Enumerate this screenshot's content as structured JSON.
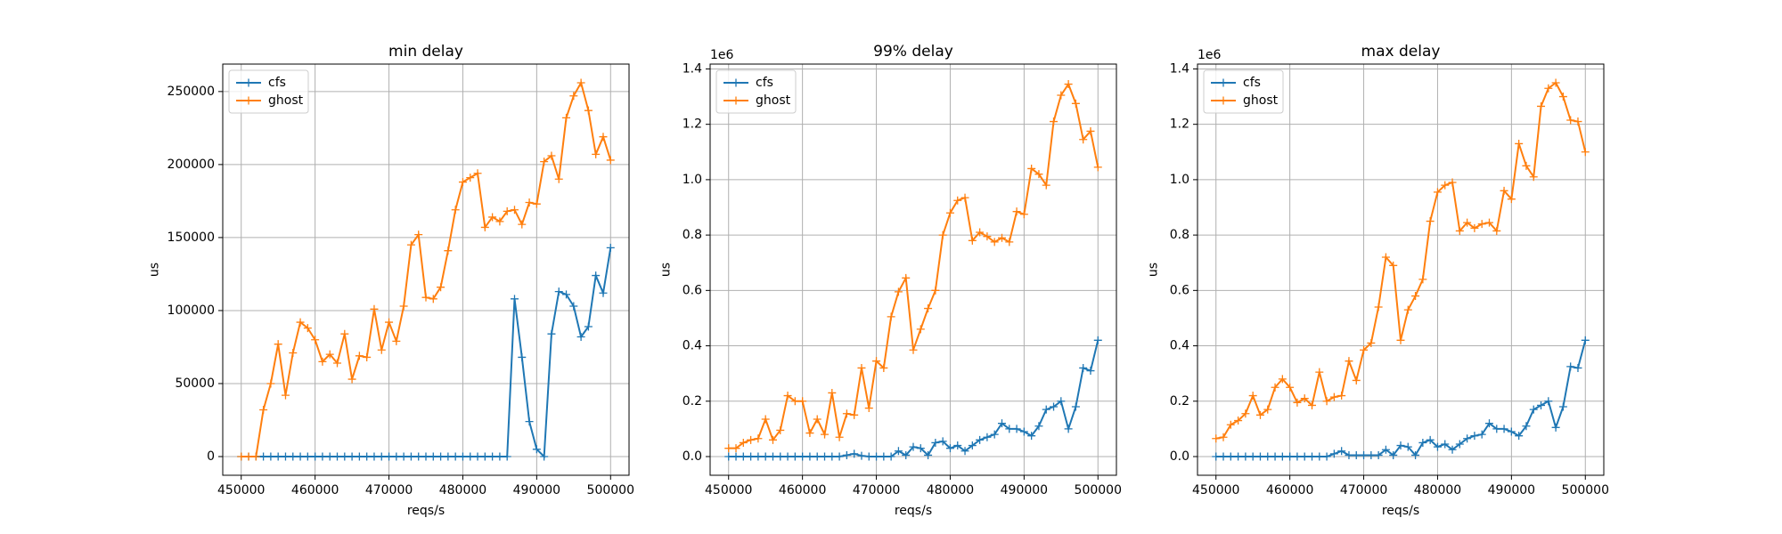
{
  "chart_data": [
    {
      "type": "line",
      "title": "min delay",
      "xlabel": "reqs/s",
      "ylabel": "us",
      "marker": "+",
      "grid": true,
      "legend": "upper left",
      "x": [
        450000,
        451000,
        452000,
        453000,
        454000,
        455000,
        456000,
        457000,
        458000,
        459000,
        460000,
        461000,
        462000,
        463000,
        464000,
        465000,
        466000,
        467000,
        468000,
        469000,
        470000,
        471000,
        472000,
        473000,
        474000,
        475000,
        476000,
        477000,
        478000,
        479000,
        480000,
        481000,
        482000,
        483000,
        484000,
        485000,
        486000,
        487000,
        488000,
        489000,
        490000,
        491000,
        492000,
        493000,
        494000,
        495000,
        496000,
        497000,
        498000,
        499000,
        500000
      ],
      "series": [
        {
          "name": "cfs",
          "color": "#1f77b4",
          "values": [
            0,
            0,
            0,
            0,
            0,
            0,
            0,
            0,
            0,
            0,
            0,
            0,
            0,
            0,
            0,
            0,
            0,
            0,
            0,
            0,
            0,
            0,
            0,
            0,
            0,
            0,
            0,
            0,
            0,
            0,
            0,
            0,
            0,
            0,
            0,
            0,
            0,
            108000,
            68000,
            24000,
            5000,
            0,
            84000,
            113000,
            111000,
            103000,
            82000,
            89000,
            124000,
            112000,
            143000
          ]
        },
        {
          "name": "ghost",
          "color": "#ff7f0e",
          "values": [
            0,
            0,
            0,
            32000,
            50000,
            77000,
            42000,
            71000,
            92000,
            88000,
            80000,
            65000,
            70000,
            64000,
            84000,
            53000,
            69000,
            68000,
            101000,
            73000,
            92000,
            79000,
            103000,
            145000,
            152000,
            109000,
            108000,
            116000,
            141000,
            169000,
            188000,
            191000,
            194000,
            157000,
            164000,
            161000,
            168000,
            169000,
            159000,
            174000,
            173000,
            202000,
            206000,
            190000,
            232000,
            247000,
            256000,
            237000,
            207000,
            219000,
            203000
          ]
        }
      ],
      "xlim": [
        447500,
        502500
      ],
      "xticks": [
        450000,
        460000,
        470000,
        480000,
        490000,
        500000
      ],
      "ylim": [
        -12800,
        268800
      ],
      "yticks": [
        0,
        50000,
        100000,
        150000,
        200000,
        250000
      ]
    },
    {
      "type": "line",
      "title": "99% delay",
      "xlabel": "reqs/s",
      "ylabel": "us",
      "y_offset_label": "1e6",
      "marker": "+",
      "grid": true,
      "legend": "upper left",
      "x": [
        450000,
        451000,
        452000,
        453000,
        454000,
        455000,
        456000,
        457000,
        458000,
        459000,
        460000,
        461000,
        462000,
        463000,
        464000,
        465000,
        466000,
        467000,
        468000,
        469000,
        470000,
        471000,
        472000,
        473000,
        474000,
        475000,
        476000,
        477000,
        478000,
        479000,
        480000,
        481000,
        482000,
        483000,
        484000,
        485000,
        486000,
        487000,
        488000,
        489000,
        490000,
        491000,
        492000,
        493000,
        494000,
        495000,
        496000,
        497000,
        498000,
        499000,
        500000
      ],
      "series": [
        {
          "name": "cfs",
          "color": "#1f77b4",
          "values": [
            0,
            0,
            0,
            0,
            0,
            0,
            0,
            0,
            0,
            0,
            0,
            0,
            0,
            0,
            0,
            0,
            5000,
            10000,
            3000,
            0,
            0,
            0,
            0,
            20000,
            5000,
            35000,
            30000,
            5000,
            50000,
            55000,
            30000,
            40000,
            20000,
            40000,
            60000,
            70000,
            80000,
            120000,
            100000,
            100000,
            90000,
            75000,
            110000,
            170000,
            180000,
            200000,
            100000,
            180000,
            320000,
            310000,
            420000
          ]
        },
        {
          "name": "ghost",
          "color": "#ff7f0e",
          "values": [
            30000,
            30000,
            50000,
            60000,
            65000,
            135000,
            60000,
            95000,
            220000,
            200000,
            200000,
            85000,
            135000,
            80000,
            230000,
            70000,
            155000,
            150000,
            320000,
            175000,
            345000,
            320000,
            505000,
            595000,
            645000,
            385000,
            460000,
            535000,
            600000,
            800000,
            880000,
            925000,
            935000,
            780000,
            810000,
            795000,
            775000,
            790000,
            775000,
            885000,
            875000,
            1040000,
            1020000,
            980000,
            1210000,
            1305000,
            1345000,
            1275000,
            1145000,
            1175000,
            1045000
          ]
        }
      ],
      "xlim": [
        447500,
        502500
      ],
      "xticks": [
        450000,
        460000,
        470000,
        480000,
        490000,
        500000
      ],
      "ylim": [
        -67500,
        1417500
      ],
      "yticks": [
        {
          "value": 0,
          "label": "0.0"
        },
        {
          "value": 200000,
          "label": "0.2"
        },
        {
          "value": 400000,
          "label": "0.4"
        },
        {
          "value": 600000,
          "label": "0.6"
        },
        {
          "value": 800000,
          "label": "0.8"
        },
        {
          "value": 1000000,
          "label": "1.0"
        },
        {
          "value": 1200000,
          "label": "1.2"
        },
        {
          "value": 1400000,
          "label": "1.4"
        }
      ]
    },
    {
      "type": "line",
      "title": "max delay",
      "xlabel": "reqs/s",
      "ylabel": "us",
      "y_offset_label": "1e6",
      "marker": "+",
      "grid": true,
      "legend": "upper left",
      "x": [
        450000,
        451000,
        452000,
        453000,
        454000,
        455000,
        456000,
        457000,
        458000,
        459000,
        460000,
        461000,
        462000,
        463000,
        464000,
        465000,
        466000,
        467000,
        468000,
        469000,
        470000,
        471000,
        472000,
        473000,
        474000,
        475000,
        476000,
        477000,
        478000,
        479000,
        480000,
        481000,
        482000,
        483000,
        484000,
        485000,
        486000,
        487000,
        488000,
        489000,
        490000,
        491000,
        492000,
        493000,
        494000,
        495000,
        496000,
        497000,
        498000,
        499000,
        500000
      ],
      "series": [
        {
          "name": "cfs",
          "color": "#1f77b4",
          "values": [
            0,
            0,
            0,
            0,
            0,
            0,
            0,
            0,
            0,
            0,
            0,
            0,
            0,
            0,
            0,
            0,
            10000,
            20000,
            5000,
            5000,
            5000,
            5000,
            5000,
            25000,
            5000,
            40000,
            35000,
            5000,
            50000,
            60000,
            35000,
            45000,
            25000,
            45000,
            65000,
            75000,
            80000,
            120000,
            100000,
            100000,
            90000,
            75000,
            110000,
            170000,
            185000,
            200000,
            105000,
            180000,
            325000,
            320000,
            420000
          ]
        },
        {
          "name": "ghost",
          "color": "#ff7f0e",
          "values": [
            65000,
            70000,
            115000,
            130000,
            155000,
            220000,
            150000,
            170000,
            250000,
            280000,
            250000,
            195000,
            210000,
            185000,
            305000,
            200000,
            215000,
            220000,
            345000,
            275000,
            385000,
            410000,
            540000,
            720000,
            690000,
            420000,
            530000,
            580000,
            640000,
            850000,
            955000,
            980000,
            990000,
            815000,
            845000,
            825000,
            840000,
            845000,
            815000,
            960000,
            930000,
            1130000,
            1050000,
            1010000,
            1265000,
            1330000,
            1350000,
            1300000,
            1215000,
            1210000,
            1100000
          ]
        }
      ],
      "xlim": [
        447500,
        502500
      ],
      "xticks": [
        450000,
        460000,
        470000,
        480000,
        490000,
        500000
      ],
      "ylim": [
        -67500,
        1417500
      ],
      "yticks": [
        {
          "value": 0,
          "label": "0.0"
        },
        {
          "value": 200000,
          "label": "0.2"
        },
        {
          "value": 400000,
          "label": "0.4"
        },
        {
          "value": 600000,
          "label": "0.6"
        },
        {
          "value": 800000,
          "label": "0.8"
        },
        {
          "value": 1000000,
          "label": "1.0"
        },
        {
          "value": 1200000,
          "label": "1.2"
        },
        {
          "value": 1400000,
          "label": "1.4"
        }
      ]
    }
  ]
}
